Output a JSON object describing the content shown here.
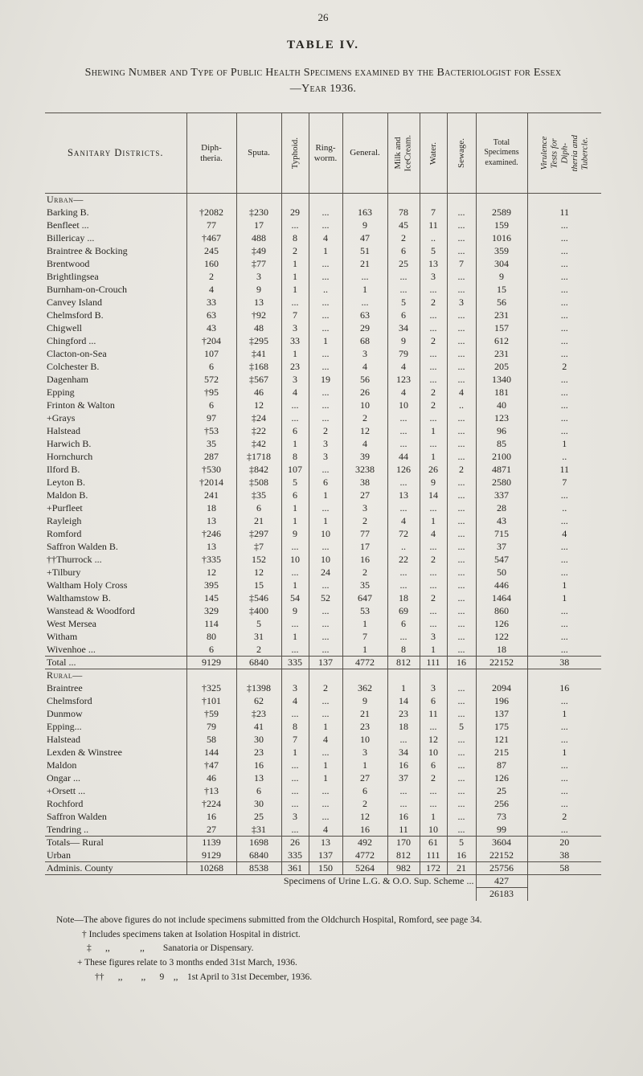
{
  "page": {
    "number": "26",
    "title": "TABLE IV.",
    "subtitle": "Shewing Number and Type of Public Health Specimens examined by the Bacteriologist for Essex—Year 1936."
  },
  "table": {
    "headers": {
      "district": "Sanitary Districts.",
      "diphtheria": "Diph-\ntheria.",
      "sputa": "Sputa.",
      "typhoid": "Typhoid.",
      "ringworm": "Ring-\nworm.",
      "general": "General.",
      "milk": "Milk and\nIceCream.",
      "water": "Water.",
      "sewage": "Sewage.",
      "total": "Total\nSpecimens\nexamined.",
      "virulence": "Virulence\nTests for\nDiph-\ntheria and\nTubercle."
    },
    "sections": [
      {
        "label": "Urban—",
        "rows": [
          {
            "name": "Barking B.",
            "cells": [
              "†2082",
              "‡230",
              "29",
              "...",
              "163",
              "78",
              "7",
              "...",
              "2589",
              "11"
            ]
          },
          {
            "name": "Benfleet ...",
            "cells": [
              "77",
              "17",
              "...",
              "...",
              "9",
              "45",
              "11",
              "...",
              "159",
              "..."
            ]
          },
          {
            "name": "Billericay ...",
            "cells": [
              "†467",
              "488",
              "8",
              "4",
              "47",
              "2",
              "..",
              "...",
              "1016",
              "..."
            ]
          },
          {
            "name": "Braintree & Bocking",
            "cells": [
              "245",
              "‡49",
              "2",
              "1",
              "51",
              "6",
              "5",
              "...",
              "359",
              "..."
            ]
          },
          {
            "name": "Brentwood",
            "cells": [
              "160",
              "‡77",
              "1",
              "...",
              "21",
              "25",
              "13",
              "7",
              "304",
              "..."
            ]
          },
          {
            "name": "Brightlingsea",
            "cells": [
              "2",
              "3",
              "1",
              "...",
              "...",
              "...",
              "3",
              "...",
              "9",
              "..."
            ]
          },
          {
            "name": "Burnham-on-Crouch",
            "cells": [
              "4",
              "9",
              "1",
              "..",
              "1",
              "...",
              "...",
              "...",
              "15",
              "..."
            ]
          },
          {
            "name": "Canvey Island",
            "cells": [
              "33",
              "13",
              "...",
              "...",
              "...",
              "5",
              "2",
              "3",
              "56",
              "..."
            ]
          },
          {
            "name": "Chelmsford B.",
            "cells": [
              "63",
              "†92",
              "7",
              "...",
              "63",
              "6",
              "...",
              "...",
              "231",
              "..."
            ]
          },
          {
            "name": "Chigwell",
            "cells": [
              "43",
              "48",
              "3",
              "...",
              "29",
              "34",
              "...",
              "...",
              "157",
              "..."
            ]
          },
          {
            "name": "Chingford ...",
            "cells": [
              "†204",
              "‡295",
              "33",
              "1",
              "68",
              "9",
              "2",
              "...",
              "612",
              "..."
            ]
          },
          {
            "name": "Clacton-on-Sea",
            "cells": [
              "107",
              "‡41",
              "1",
              "...",
              "3",
              "79",
              "...",
              "...",
              "231",
              "..."
            ]
          },
          {
            "name": "Colchester B.",
            "cells": [
              "6",
              "‡168",
              "23",
              "...",
              "4",
              "4",
              "...",
              "...",
              "205",
              "2"
            ]
          },
          {
            "name": "Dagenham",
            "cells": [
              "572",
              "‡567",
              "3",
              "19",
              "56",
              "123",
              "...",
              "...",
              "1340",
              "..."
            ]
          },
          {
            "name": "Epping",
            "cells": [
              "†95",
              "46",
              "4",
              "...",
              "26",
              "4",
              "2",
              "4",
              "181",
              "..."
            ]
          },
          {
            "name": "Frinton & Walton",
            "cells": [
              "6",
              "12",
              "...",
              "...",
              "10",
              "10",
              "2",
              "..",
              "40",
              "..."
            ]
          },
          {
            "name": "+Grays",
            "cells": [
              "97",
              "‡24",
              "...",
              "...",
              "2",
              "...",
              "...",
              "...",
              "123",
              "..."
            ]
          },
          {
            "name": "Halstead",
            "cells": [
              "†53",
              "‡22",
              "6",
              "2",
              "12",
              "...",
              "1",
              "...",
              "96",
              "..."
            ]
          },
          {
            "name": "Harwich B.",
            "cells": [
              "35",
              "‡42",
              "1",
              "3",
              "4",
              "...",
              "...",
              "...",
              "85",
              "1"
            ]
          },
          {
            "name": "Hornchurch",
            "cells": [
              "287",
              "‡1718",
              "8",
              "3",
              "39",
              "44",
              "1",
              "...",
              "2100",
              ".."
            ]
          },
          {
            "name": "Ilford B.",
            "cells": [
              "†530",
              "‡842",
              "107",
              "...",
              "3238",
              "126",
              "26",
              "2",
              "4871",
              "11"
            ]
          },
          {
            "name": "Leyton B.",
            "cells": [
              "†2014",
              "‡508",
              "5",
              "6",
              "38",
              "...",
              "9",
              "...",
              "2580",
              "7"
            ]
          },
          {
            "name": "Maldon B.",
            "cells": [
              "241",
              "‡35",
              "6",
              "1",
              "27",
              "13",
              "14",
              "...",
              "337",
              "..."
            ]
          },
          {
            "name": "+Purfleet",
            "cells": [
              "18",
              "6",
              "1",
              "...",
              "3",
              "...",
              "...",
              "...",
              "28",
              ".."
            ]
          },
          {
            "name": "Rayleigh",
            "cells": [
              "13",
              "21",
              "1",
              "1",
              "2",
              "4",
              "1",
              "...",
              "43",
              "..."
            ]
          },
          {
            "name": "Romford",
            "cells": [
              "†246",
              "‡297",
              "9",
              "10",
              "77",
              "72",
              "4",
              "...",
              "715",
              "4"
            ]
          },
          {
            "name": "Saffron Walden B.",
            "cells": [
              "13",
              "‡7",
              "...",
              "...",
              "17",
              "..",
              "...",
              "...",
              "37",
              "..."
            ]
          },
          {
            "name": "††Thurrock ...",
            "cells": [
              "†335",
              "152",
              "10",
              "10",
              "16",
              "22",
              "2",
              "...",
              "547",
              "..."
            ]
          },
          {
            "name": "+Tilbury",
            "cells": [
              "12",
              "12",
              "...",
              "24",
              "2",
              "...",
              "...",
              "...",
              "50",
              "..."
            ]
          },
          {
            "name": "Waltham Holy Cross",
            "cells": [
              "395",
              "15",
              "1",
              "...",
              "35",
              "...",
              "...",
              "...",
              "446",
              "1"
            ]
          },
          {
            "name": "Walthamstow B.",
            "cells": [
              "145",
              "‡546",
              "54",
              "52",
              "647",
              "18",
              "2",
              "...",
              "1464",
              "1"
            ]
          },
          {
            "name": "Wanstead & Woodford",
            "cells": [
              "329",
              "‡400",
              "9",
              "...",
              "53",
              "69",
              "...",
              "...",
              "860",
              "..."
            ]
          },
          {
            "name": "West Mersea",
            "cells": [
              "114",
              "5",
              "...",
              "...",
              "1",
              "6",
              "...",
              "...",
              "126",
              "..."
            ]
          },
          {
            "name": "Witham",
            "cells": [
              "80",
              "31",
              "1",
              "...",
              "7",
              "...",
              "3",
              "...",
              "122",
              "..."
            ]
          },
          {
            "name": "Wivenhoe ...",
            "cells": [
              "6",
              "2",
              "...",
              "...",
              "1",
              "8",
              "1",
              "...",
              "18",
              "..."
            ]
          }
        ],
        "total": {
          "name": "Total ...",
          "cells": [
            "9129",
            "6840",
            "335",
            "137",
            "4772",
            "812",
            "111",
            "16",
            "22152",
            "38"
          ]
        }
      },
      {
        "label": "Rural—",
        "rows": [
          {
            "name": "Braintree",
            "cells": [
              "†325",
              "‡1398",
              "3",
              "2",
              "362",
              "1",
              "3",
              "...",
              "2094",
              "16"
            ]
          },
          {
            "name": "Chelmsford",
            "cells": [
              "†101",
              "62",
              "4",
              "...",
              "9",
              "14",
              "6",
              "...",
              "196",
              "..."
            ]
          },
          {
            "name": "Dunmow",
            "cells": [
              "†59",
              "‡23",
              "...",
              "...",
              "21",
              "23",
              "11",
              "...",
              "137",
              "1"
            ]
          },
          {
            "name": "Epping...",
            "cells": [
              "79",
              "41",
              "8",
              "1",
              "23",
              "18",
              "...",
              "5",
              "175",
              "..."
            ]
          },
          {
            "name": "Halstead",
            "cells": [
              "58",
              "30",
              "7",
              "4",
              "10",
              "...",
              "12",
              "...",
              "121",
              "..."
            ]
          },
          {
            "name": "Lexden & Winstree",
            "cells": [
              "144",
              "23",
              "1",
              "...",
              "3",
              "34",
              "10",
              "...",
              "215",
              "1"
            ]
          },
          {
            "name": "Maldon",
            "cells": [
              "†47",
              "16",
              "...",
              "1",
              "1",
              "16",
              "6",
              "...",
              "87",
              "..."
            ]
          },
          {
            "name": "Ongar ...",
            "cells": [
              "46",
              "13",
              "...",
              "1",
              "27",
              "37",
              "2",
              "...",
              "126",
              "..."
            ]
          },
          {
            "name": "+Orsett ...",
            "cells": [
              "†13",
              "6",
              "...",
              "...",
              "6",
              "...",
              "...",
              "...",
              "25",
              "..."
            ]
          },
          {
            "name": "Rochford",
            "cells": [
              "†224",
              "30",
              "...",
              "...",
              "2",
              "...",
              "...",
              "...",
              "256",
              "..."
            ]
          },
          {
            "name": "Saffron Walden",
            "cells": [
              "16",
              "25",
              "3",
              "...",
              "12",
              "16",
              "1",
              "...",
              "73",
              "2"
            ]
          },
          {
            "name": "Tendring ..",
            "cells": [
              "27",
              "‡31",
              "...",
              "4",
              "16",
              "11",
              "10",
              "...",
              "99",
              "..."
            ]
          }
        ]
      }
    ],
    "totals": [
      {
        "name": "Totals— Rural",
        "cells": [
          "1139",
          "1698",
          "26",
          "13",
          "492",
          "170",
          "61",
          "5",
          "3604",
          "20"
        ]
      },
      {
        "name": "Urban",
        "cells": [
          "9129",
          "6840",
          "335",
          "137",
          "4772",
          "812",
          "111",
          "16",
          "22152",
          "38"
        ]
      }
    ],
    "county": {
      "name": "Adminis. County",
      "cells": [
        "10268",
        "8538",
        "361",
        "150",
        "5264",
        "982",
        "172",
        "21",
        "25756",
        "58"
      ]
    },
    "urine": {
      "label": "Specimens of Urine L.G. & O.O. Sup. Scheme  ...",
      "value": "427"
    },
    "grand_total": "26183"
  },
  "notes": {
    "n1": "Note—The above figures do not include specimens submitted from the Oldchurch Hospital, Romford, see page 34.",
    "n2": "† Includes specimens taken at Isolation Hospital in district.",
    "n3": "‡      ,,             ,,        Sanatoria or Dispensary.",
    "n4": "+ These figures relate to 3 months ended 31st March, 1936.",
    "n5": "††      ,,        ,,      9    ,,    1st April to 31st December, 1936."
  }
}
